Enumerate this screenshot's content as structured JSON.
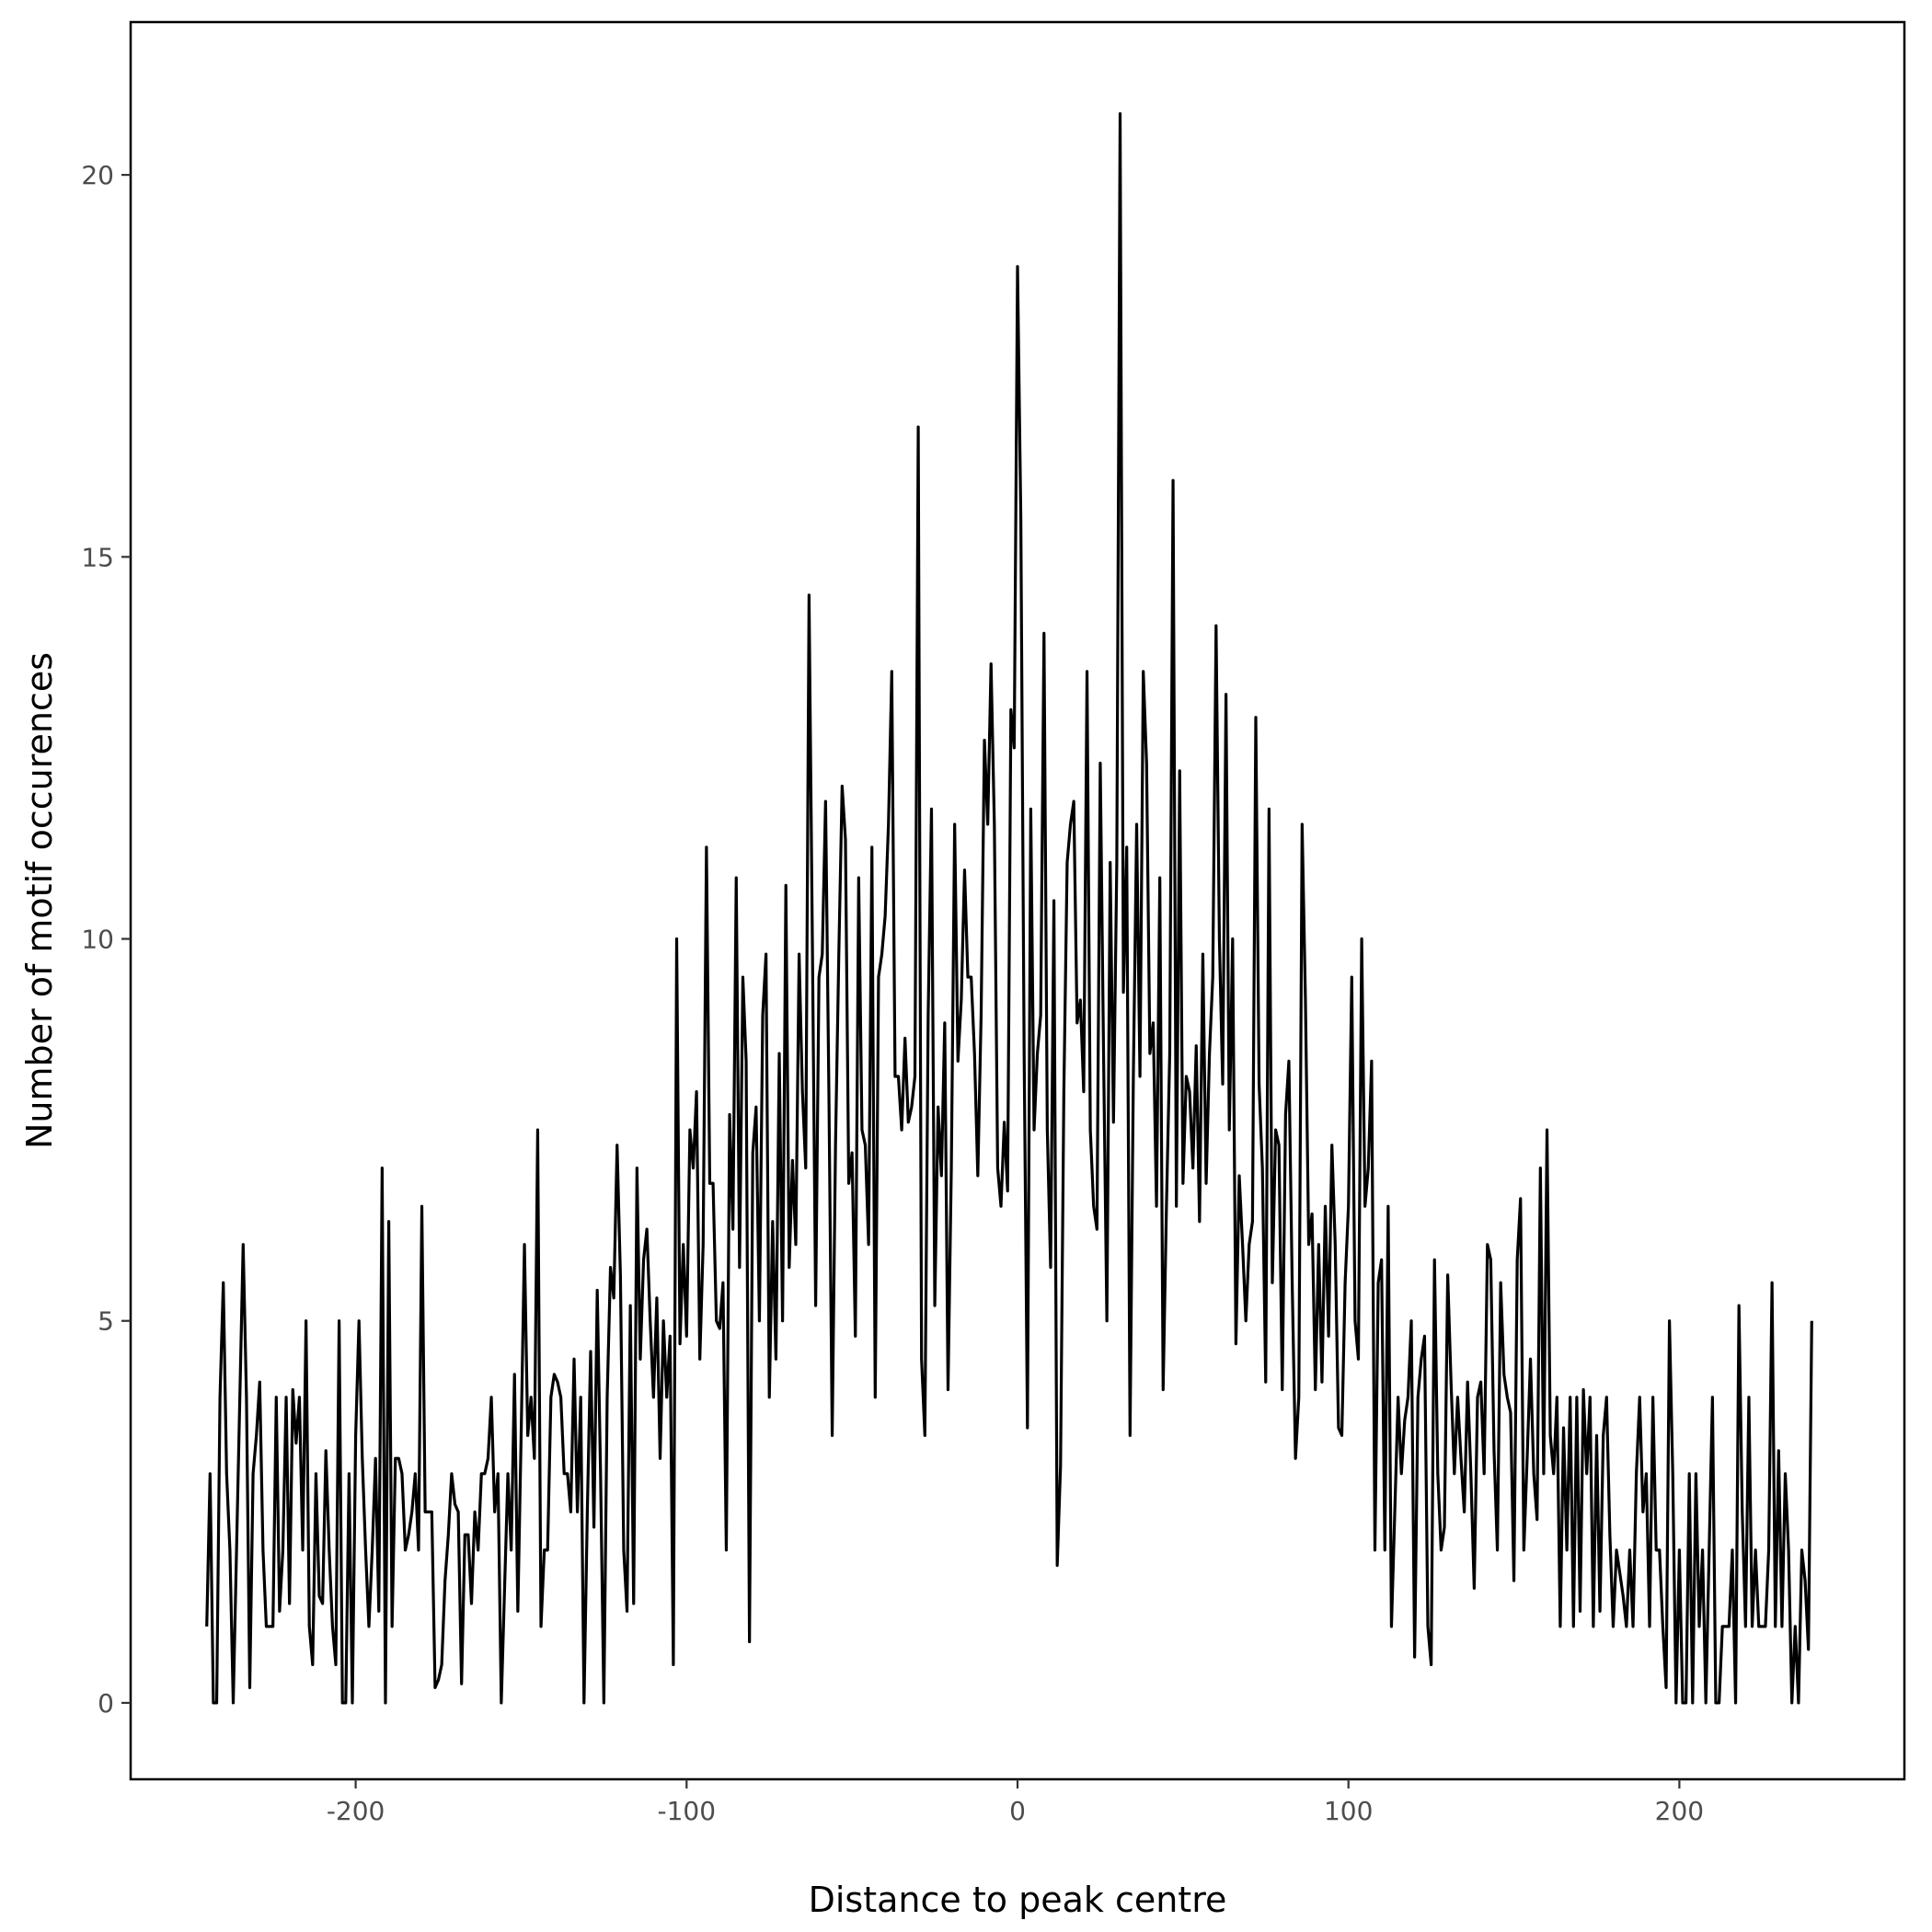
{
  "chart_data": {
    "type": "line",
    "title": "",
    "xlabel": "Distance to peak centre",
    "ylabel": "Number of motif occurences",
    "xlim": [
      -268,
      268
    ],
    "ylim": [
      -1,
      22
    ],
    "x_ticks": [
      -200,
      -100,
      0,
      100,
      200
    ],
    "y_ticks": [
      0,
      5,
      10,
      15,
      20
    ],
    "x_tick_labels": [
      "-200",
      "-100",
      "0",
      "100",
      "200"
    ],
    "y_tick_labels": [
      "0",
      "5",
      "10",
      "15",
      "20"
    ],
    "grid": false,
    "legend": "none",
    "line_color": "#000000",
    "series": [
      {
        "x_start": -245,
        "x_step": 1,
        "values": [
          1,
          3,
          0,
          0,
          4,
          5.5,
          3,
          2,
          0,
          2,
          4,
          6,
          4,
          0.2,
          3,
          3.5,
          4.2,
          2,
          1,
          1,
          1,
          4,
          1.2,
          2,
          4,
          1.3,
          4.1,
          3.4,
          4,
          2,
          5,
          1,
          0.5,
          3,
          1.4,
          1.3,
          3.3,
          2,
          1,
          0.5,
          5,
          0,
          0,
          3,
          0,
          3.5,
          5,
          3.2,
          2,
          1,
          2,
          3.2,
          1.2,
          7,
          0,
          6.3,
          1,
          3.2,
          3.2,
          3,
          2,
          2.2,
          2.5,
          3,
          2,
          6.5,
          2.5,
          2.5,
          2.5,
          0.2,
          0.3,
          0.5,
          1.6,
          2.2,
          3,
          2.6,
          2.5,
          0.25,
          2.2,
          2.2,
          1.3,
          2.5,
          2,
          3,
          3,
          3.2,
          4,
          2.5,
          3,
          0,
          1.5,
          3,
          2,
          4.3,
          1.2,
          3.5,
          6,
          3.5,
          4,
          3.2,
          7.5,
          1,
          2,
          2,
          4,
          4.3,
          4.2,
          4,
          3,
          3,
          2.5,
          4.5,
          2.5,
          4,
          0,
          2.5,
          4.6,
          2.3,
          5.4,
          3,
          0,
          4,
          5.7,
          5.3,
          7.3,
          5.6,
          2,
          1.2,
          5.2,
          1.3,
          7,
          4.5,
          5.8,
          6.2,
          5,
          4,
          5.3,
          3.2,
          5,
          4,
          4.8,
          0.5,
          10,
          4.7,
          6,
          4.8,
          7.5,
          7,
          8,
          4.5,
          6,
          11.2,
          6.8,
          6.8,
          5,
          4.9,
          5.5,
          2,
          7.7,
          6.2,
          10.8,
          5.7,
          9.5,
          8.4,
          0.8,
          7.2,
          7.8,
          5,
          9,
          9.8,
          4,
          6.3,
          4.5,
          8.5,
          5,
          10.7,
          5.7,
          7.1,
          6,
          9.8,
          8,
          7,
          14.5,
          10,
          5.2,
          9.5,
          9.8,
          11.8,
          8,
          3.5,
          7.3,
          9.8,
          12,
          11.3,
          6.8,
          7.2,
          4.8,
          10.8,
          7.5,
          7.3,
          6,
          11.2,
          4,
          9.5,
          9.8,
          10.3,
          11.5,
          13.5,
          8.2,
          8.2,
          7.5,
          8.7,
          7.6,
          7.8,
          8.2,
          16.7,
          4.5,
          3.5,
          9,
          11.7,
          5.2,
          7.8,
          6.9,
          8.9,
          4.1,
          7,
          11.5,
          8.4,
          9.2,
          10.9,
          9.5,
          9.5,
          8.5,
          6.9,
          9,
          12.6,
          11.5,
          13.6,
          11.5,
          7,
          6.5,
          7.6,
          6.7,
          13,
          12.5,
          18.8,
          15.5,
          8.5,
          3.6,
          11.7,
          7.5,
          8.5,
          9,
          14,
          7.5,
          5.7,
          10.5,
          1.8,
          3.1,
          8,
          11,
          11.5,
          11.8,
          8.9,
          9.2,
          8,
          13.5,
          7.5,
          6.5,
          6.2,
          12.3,
          8.5,
          5,
          11,
          7.6,
          11,
          20.8,
          9.3,
          11.2,
          3.5,
          8.2,
          11.5,
          8.2,
          13.5,
          12.3,
          8.5,
          8.9,
          6.5,
          10.8,
          4.1,
          6.5,
          8.5,
          16,
          6.5,
          12.2,
          6.8,
          8.2,
          8,
          7,
          8.6,
          6.3,
          9.8,
          6.8,
          8.5,
          9.5,
          14.1,
          10,
          8.1,
          13.2,
          7.5,
          10,
          4.7,
          6.9,
          6,
          5,
          6,
          6.3,
          12.9,
          8.1,
          7,
          4.2,
          11.7,
          5.5,
          7.5,
          7.3,
          4.1,
          7.7,
          8.4,
          5.5,
          3.2,
          4,
          11.5,
          9.2,
          6,
          6.4,
          4.1,
          6,
          4.2,
          6.5,
          4.8,
          7.3,
          6,
          3.6,
          3.5,
          5.5,
          6.5,
          9.5,
          5,
          4.5,
          10,
          6.5,
          7,
          8.4,
          2,
          5.5,
          5.8,
          2,
          6.5,
          1,
          2.5,
          4,
          3,
          3.7,
          4,
          5,
          0.6,
          4,
          4.5,
          4.8,
          1,
          0.5,
          5.8,
          3,
          2,
          2.3,
          5.6,
          4.2,
          3,
          4,
          3.2,
          2.5,
          4.2,
          3,
          1.5,
          4,
          4.2,
          3,
          6,
          5.8,
          3.3,
          2,
          5.5,
          4.3,
          4,
          3.8,
          1.6,
          5.8,
          6.6,
          2,
          3.2,
          4.5,
          3,
          2.4,
          7,
          3,
          7.5,
          3.5,
          3,
          4,
          1,
          3.6,
          2,
          4,
          1,
          4,
          1.2,
          4.1,
          3,
          4,
          1,
          3.5,
          1.2,
          3.5,
          4,
          2.2,
          1,
          2,
          1.7,
          1.4,
          1,
          2,
          1,
          3,
          4,
          2.5,
          3,
          1,
          4,
          2,
          2,
          1,
          0.2,
          5,
          3,
          0,
          2,
          0,
          0,
          3,
          0,
          3,
          1,
          2,
          0,
          2,
          4,
          0,
          0,
          1,
          1,
          1,
          2,
          0,
          5.2,
          2.5,
          1,
          4,
          1,
          2,
          1,
          1,
          1,
          2,
          5.5,
          1,
          3.3,
          1,
          3,
          2,
          0,
          1,
          0,
          2,
          1.6,
          0.7,
          5
        ]
      }
    ]
  }
}
